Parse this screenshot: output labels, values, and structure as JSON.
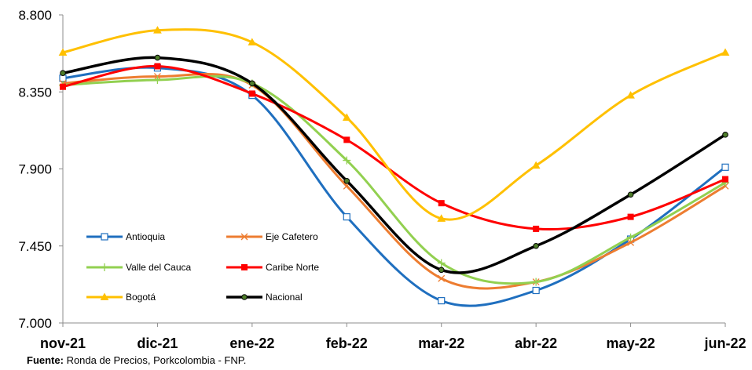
{
  "chart_data": {
    "type": "line",
    "categories": [
      "nov-21",
      "dic-21",
      "ene-22",
      "feb-22",
      "mar-22",
      "abr-22",
      "may-22",
      "jun-22"
    ],
    "ylim": [
      7000,
      8800
    ],
    "yticks": [
      7000,
      7450,
      7900,
      8350,
      8800
    ],
    "ytick_labels": [
      "7.000",
      "7.450",
      "7.900",
      "8.350",
      "8.800"
    ],
    "grid": false,
    "legend_position": "bottom-left inside",
    "series": [
      {
        "name": "Antioquia",
        "color": "#1f6fbf",
        "marker": "square-open",
        "values": [
          8430,
          8490,
          8330,
          7620,
          7130,
          7190,
          7490,
          7910
        ]
      },
      {
        "name": "Eje Cafetero",
        "color": "#ed7d31",
        "marker": "x",
        "values": [
          8400,
          8440,
          8390,
          7800,
          7260,
          7240,
          7470,
          7800
        ]
      },
      {
        "name": "Valle del Cauca",
        "color": "#92d050",
        "marker": "plus",
        "values": [
          8390,
          8420,
          8400,
          7950,
          7350,
          7240,
          7500,
          7820
        ]
      },
      {
        "name": "Caribe Norte",
        "color": "#ff0000",
        "marker": "square-filled",
        "values": [
          8380,
          8500,
          8340,
          8070,
          7700,
          7550,
          7620,
          7840
        ]
      },
      {
        "name": "Bogotá",
        "color": "#ffc000",
        "marker": "triangle",
        "values": [
          8580,
          8710,
          8640,
          8200,
          7610,
          7920,
          8330,
          8580
        ]
      },
      {
        "name": "Nacional",
        "color": "#000000",
        "marker": "circle",
        "values": [
          8460,
          8550,
          8400,
          7830,
          7310,
          7450,
          7750,
          8100
        ]
      }
    ]
  },
  "source": {
    "label": "Fuente:",
    "text": " Ronda de Precios, Porkcolombia - FNP."
  }
}
